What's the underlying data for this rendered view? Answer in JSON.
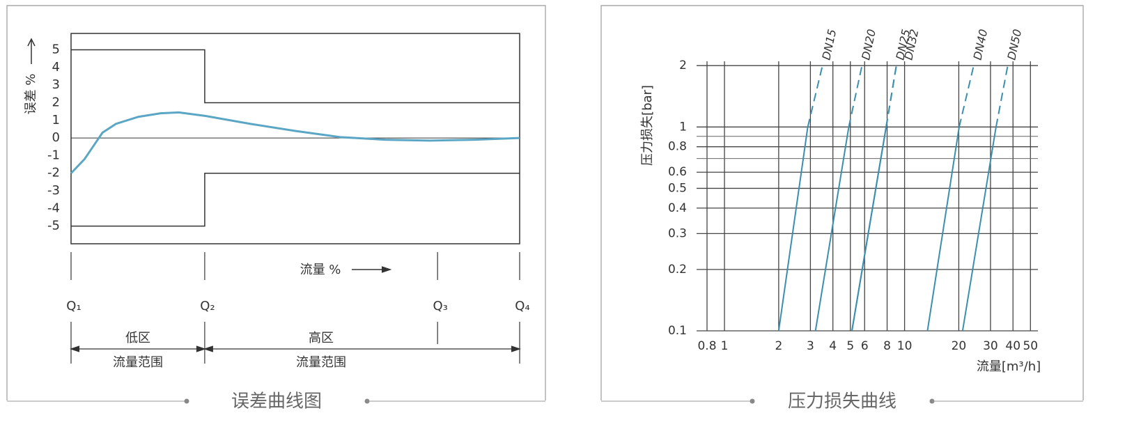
{
  "chart_data": [
    {
      "type": "line",
      "title": "误差曲线图",
      "ylabel": "误差 %",
      "xlabel": "流量 %",
      "xlim": [
        0,
        100
      ],
      "xticks": [
        {
          "value": 0,
          "label": "Q₁"
        },
        {
          "value": 29.8,
          "label": "Q₂"
        },
        {
          "value": 81.7,
          "label": "Q₃"
        },
        {
          "value": 100,
          "label": "Q₄"
        }
      ],
      "ylim": [
        -6,
        5.93
      ],
      "yticks": [
        5,
        4,
        3,
        2,
        1,
        0,
        -1,
        -2,
        -3,
        -4,
        -5
      ],
      "zones": [
        {
          "label": "低区",
          "sublabel": "流量范围"
        },
        {
          "label": "高区",
          "sublabel": "流量范围"
        }
      ],
      "series": [
        {
          "color": "#333333",
          "x": [
            0,
            29.8,
            29.8,
            100
          ],
          "values": [
            5,
            5,
            2,
            2
          ]
        },
        {
          "color": "#333333",
          "x": [
            0,
            29.8,
            29.8,
            100
          ],
          "values": [
            -5,
            -5,
            -2,
            -2
          ]
        },
        {
          "color": "#5aa6c4",
          "x": [
            0,
            3,
            7,
            10,
            15,
            20,
            24,
            30,
            40,
            50,
            60,
            70,
            80,
            90,
            100
          ],
          "values": [
            -2,
            -1.2,
            0.3,
            0.8,
            1.2,
            1.4,
            1.45,
            1.25,
            0.8,
            0.4,
            0.05,
            -0.1,
            -0.15,
            -0.1,
            0
          ]
        }
      ]
    },
    {
      "type": "line",
      "title": "压力损失曲线",
      "ylabel": "压力损失[bar]",
      "xlabel": "流量[m³/h]",
      "log_x": true,
      "log_y": true,
      "grid": true,
      "xlim": [
        0.7,
        55
      ],
      "xticks": [
        0.8,
        1,
        2,
        3,
        4,
        5,
        6,
        8,
        10,
        20,
        30,
        40,
        50
      ],
      "ylim": [
        0.1,
        2.1
      ],
      "yticks": [
        0.1,
        0.2,
        0.3,
        0.4,
        0.5,
        0.6,
        0.8,
        1,
        2
      ],
      "minor_yticks": [
        0.7,
        0.9
      ],
      "series": [
        {
          "name": "DN15",
          "color": "#3a8fb0",
          "x": [
            2,
            2.9,
            3.5
          ],
          "values": [
            0.1,
            1,
            2
          ],
          "line_styles": [
            "solid",
            "dashed"
          ]
        },
        {
          "name": "DN20",
          "color": "#3a8fb0",
          "x": [
            3.2,
            4.9,
            5.8
          ],
          "values": [
            0.1,
            1,
            2
          ],
          "line_styles": [
            "solid",
            "dashed"
          ]
        },
        {
          "name": "DN25",
          "color": "#3a8fb0",
          "x": [
            5.1,
            7.9,
            9
          ],
          "values": [
            0.1,
            1,
            2
          ],
          "line_styles": [
            "solid",
            "dashed"
          ]
        },
        {
          "name": "DN32",
          "color": "#3a8fb0",
          "x": [
            5.1,
            7.9,
            9
          ],
          "values": [
            0.1,
            1,
            2
          ],
          "line_styles": [
            "solid",
            "dashed"
          ]
        },
        {
          "name": "DN40",
          "color": "#3a8fb0",
          "x": [
            13.4,
            20.1,
            24.2
          ],
          "values": [
            0.1,
            1,
            2
          ],
          "line_styles": [
            "solid",
            "dashed"
          ]
        },
        {
          "name": "DN50",
          "color": "#3a8fb0",
          "x": [
            21,
            32.2,
            37.4
          ],
          "values": [
            0.1,
            1,
            2
          ],
          "line_styles": [
            "solid",
            "dashed"
          ]
        }
      ]
    }
  ]
}
